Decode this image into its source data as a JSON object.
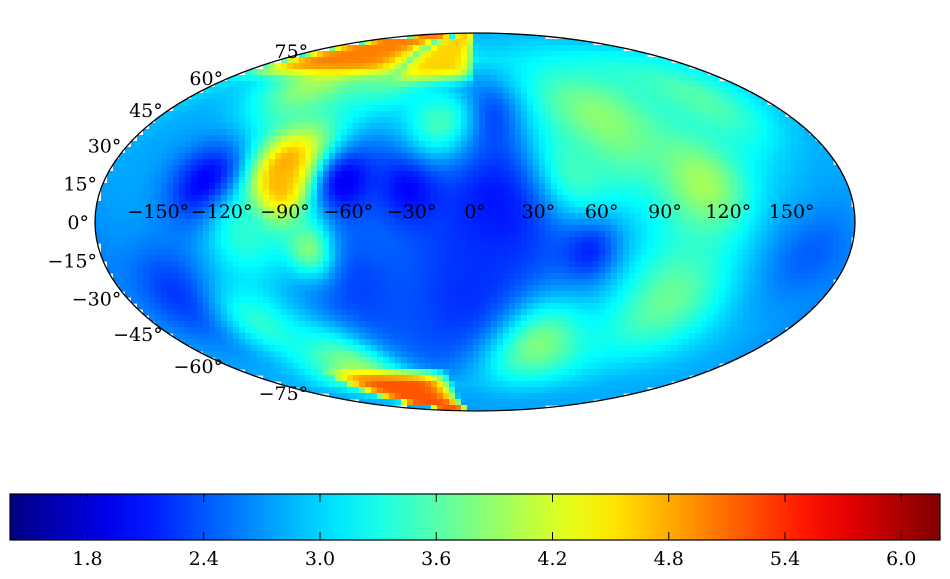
{
  "chart_data": {
    "type": "heatmap",
    "projection": "mollweide",
    "title": "",
    "xlabel": "",
    "ylabel": "",
    "longitude_tick_labels": [
      "−150°",
      "−120°",
      "−90°",
      "−60°",
      "−30°",
      "0°",
      "30°",
      "60°",
      "90°",
      "120°",
      "150°"
    ],
    "longitude_ticks": [
      -150,
      -120,
      -90,
      -60,
      -30,
      0,
      30,
      60,
      90,
      120,
      150
    ],
    "latitude_tick_labels": [
      "75°",
      "60°",
      "45°",
      "30°",
      "15°",
      "0°",
      "−15°",
      "−30°",
      "−45°",
      "−60°",
      "−75°"
    ],
    "latitude_ticks": [
      75,
      60,
      45,
      30,
      15,
      0,
      -15,
      -30,
      -45,
      -60,
      -75
    ],
    "colormap": "jet",
    "colorbar": {
      "orientation": "horizontal",
      "placement": "bottom",
      "range": [
        1.4,
        6.2
      ],
      "tick_values": [
        1.8,
        2.4,
        3.0,
        3.6,
        4.2,
        4.8,
        5.4,
        6.0
      ],
      "tick_labels": [
        "1.8",
        "2.4",
        "3.0",
        "3.6",
        "4.2",
        "4.8",
        "5.4",
        "6.0"
      ]
    },
    "background_value": 2.8,
    "features": [
      {
        "lon": -95,
        "lat": 15,
        "value": 6.0,
        "spread_deg": 9
      },
      {
        "lon": -92,
        "lat": 20,
        "value": 5.0,
        "spread_deg": 14
      },
      {
        "lon": -130,
        "lat": 15,
        "value": 1.9,
        "spread_deg": 12
      },
      {
        "lon": -63,
        "lat": 15,
        "value": 1.9,
        "spread_deg": 11
      },
      {
        "lon": -30,
        "lat": 15,
        "value": 1.8,
        "spread_deg": 12
      },
      {
        "lon": 5,
        "lat": 45,
        "value": 1.8,
        "spread_deg": 11
      },
      {
        "lon": 10,
        "lat": 5,
        "value": 2.0,
        "spread_deg": 22
      },
      {
        "lon": 0,
        "lat": -30,
        "value": 2.2,
        "spread_deg": 28
      },
      {
        "lon": 55,
        "lat": -10,
        "value": 2.0,
        "spread_deg": 10
      },
      {
        "lon": -60,
        "lat": -25,
        "value": 2.3,
        "spread_deg": 18
      },
      {
        "lon": -150,
        "lat": -30,
        "value": 2.2,
        "spread_deg": 15
      },
      {
        "lon": 160,
        "lat": -10,
        "value": 2.4,
        "spread_deg": 15
      },
      {
        "lon": 150,
        "lat": 20,
        "value": 2.8,
        "spread_deg": 15
      },
      {
        "lon": -110,
        "lat": 60,
        "value": 4.0,
        "spread_deg": 14
      },
      {
        "lon": -60,
        "lat": 65,
        "value": 3.8,
        "spread_deg": 12
      },
      {
        "lon": -20,
        "lat": 40,
        "value": 3.5,
        "spread_deg": 12
      },
      {
        "lon": 70,
        "lat": 40,
        "value": 3.9,
        "spread_deg": 20
      },
      {
        "lon": 110,
        "lat": 15,
        "value": 4.0,
        "spread_deg": 16
      },
      {
        "lon": 140,
        "lat": 50,
        "value": 3.6,
        "spread_deg": 16
      },
      {
        "lon": 50,
        "lat": 20,
        "value": 3.5,
        "spread_deg": 12
      },
      {
        "lon": -110,
        "lat": -5,
        "value": 3.4,
        "spread_deg": 12
      },
      {
        "lon": -80,
        "lat": -10,
        "value": 3.8,
        "spread_deg": 8
      },
      {
        "lon": 100,
        "lat": -30,
        "value": 3.7,
        "spread_deg": 18
      },
      {
        "lon": 40,
        "lat": -50,
        "value": 3.8,
        "spread_deg": 14
      },
      {
        "lon": -90,
        "lat": -62,
        "value": 4.0,
        "spread_deg": 12
      },
      {
        "lon": -120,
        "lat": -40,
        "value": 3.4,
        "spread_deg": 12
      }
    ],
    "polar_bands": [
      {
        "lat_min": 65,
        "lon_min": -180,
        "lon_max": -60,
        "value": 5.0
      },
      {
        "lat_min": 62,
        "lon_min": -60,
        "lon_max": 0,
        "value": 4.6
      },
      {
        "lat_max": -66,
        "lon_min": -120,
        "lon_max": -20,
        "value": 5.2
      }
    ]
  }
}
